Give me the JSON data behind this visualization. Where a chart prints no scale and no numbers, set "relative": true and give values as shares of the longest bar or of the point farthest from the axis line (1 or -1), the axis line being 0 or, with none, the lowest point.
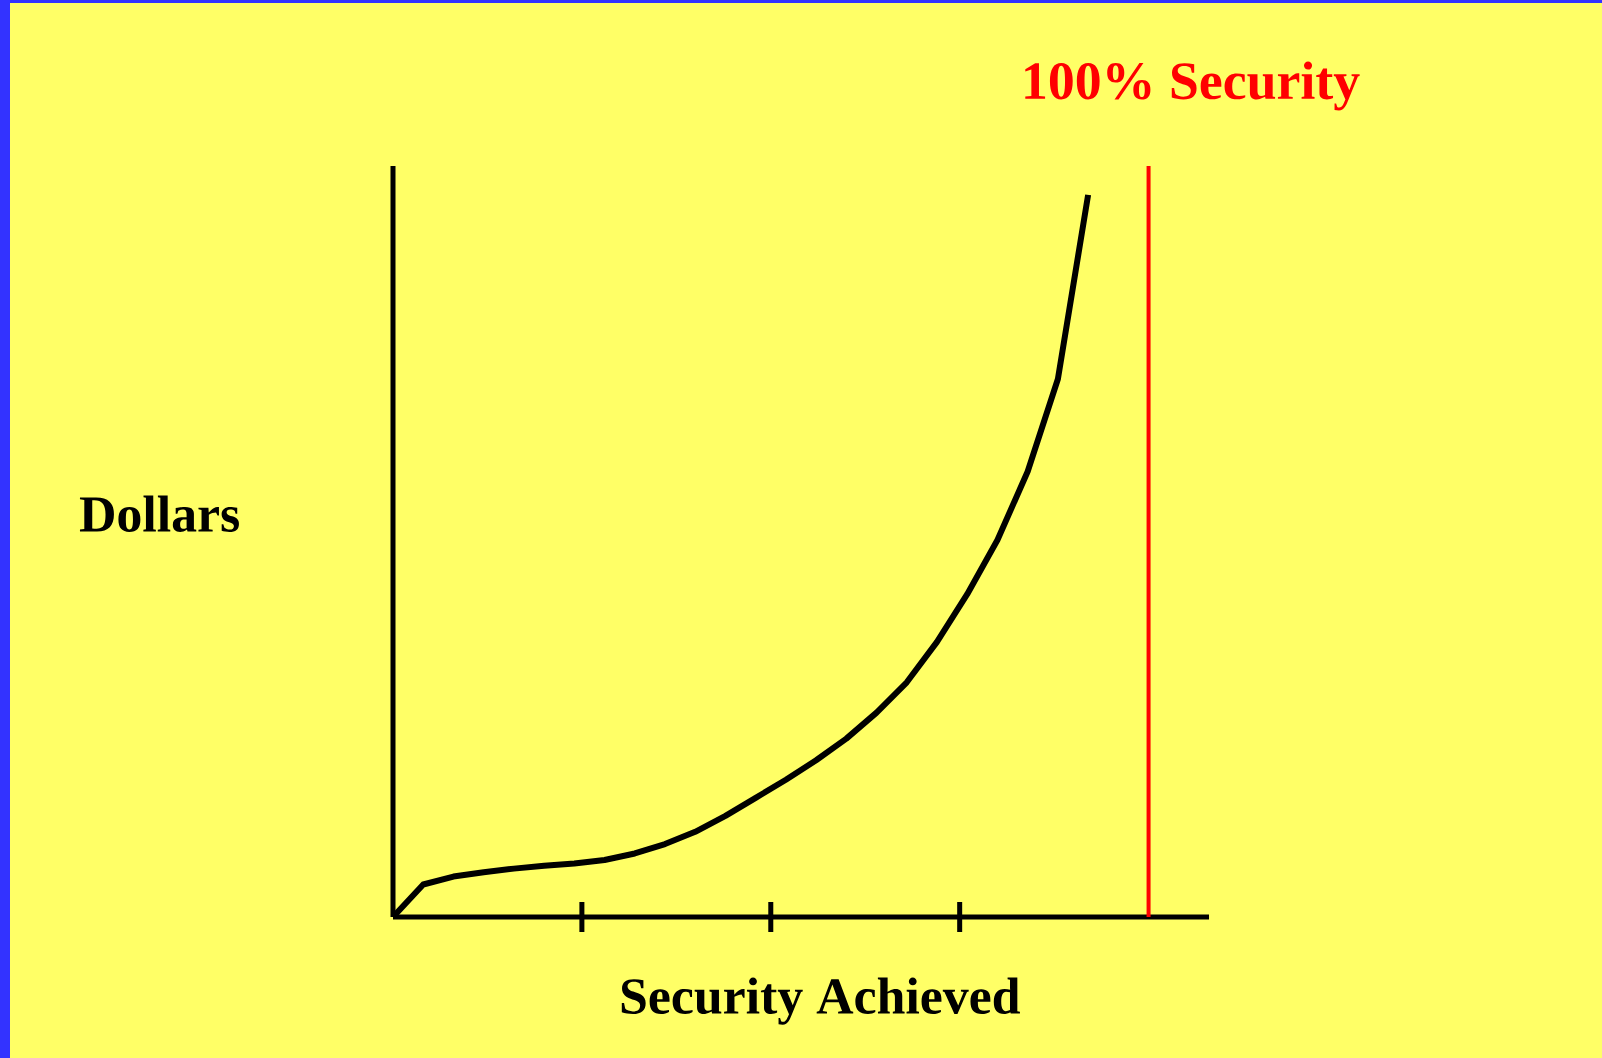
{
  "chart_data": {
    "type": "line",
    "relative": true,
    "xlabel": "Security Achieved",
    "ylabel": "Dollars",
    "categories": [
      null,
      null,
      null,
      null,
      null,
      null,
      null,
      null,
      null,
      null,
      null,
      null,
      null,
      null,
      null,
      null,
      null,
      null,
      null,
      null,
      null,
      null,
      null,
      null
    ],
    "series": [
      {
        "color": "#000000",
        "values": [
          0,
          0.045,
          0.056,
          0.062,
          0.067,
          0.071,
          0.074,
          0.079,
          0.088,
          0.101,
          0.118,
          0.14,
          0.165,
          0.19,
          0.217,
          0.247,
          0.283,
          0.325,
          0.381,
          0.447,
          0.522,
          0.617,
          0.745,
          1.0
        ]
      }
    ],
    "annotations": [
      "100%  Security"
    ],
    "grid": false,
    "marker": "none",
    "line_style": "solid"
  }
}
